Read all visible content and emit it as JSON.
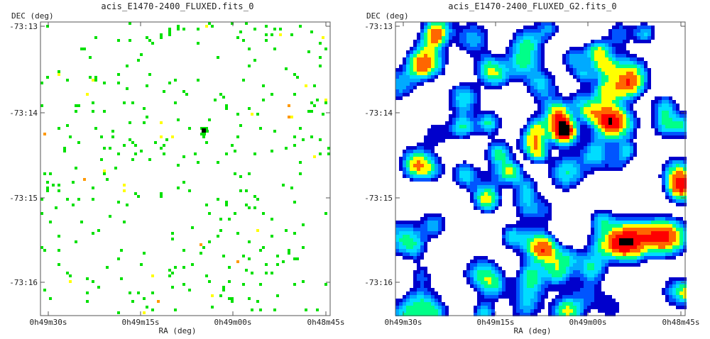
{
  "chart_data": [
    {
      "type": "heatmap",
      "title": "acis_E1470-2400_FLUXED.fits_0",
      "xlabel": "RA (deg)",
      "ylabel": "DEC (deg)",
      "x_ticks": [
        "0h49m30s",
        "0h49m15s",
        "0h49m00s",
        "0h48m45s"
      ],
      "y_ticks": [
        "-73:13",
        "-73:14",
        "-73:15",
        "-73:16"
      ],
      "colormap": [
        "#00e000",
        "#ffff00",
        "#ff9900",
        "#ff0000",
        "#000000"
      ],
      "background": "#ffffff",
      "peak_source": {
        "ra": "0h49m04s",
        "dec": "-73:14:12"
      }
    },
    {
      "type": "heatmap",
      "title": "acis_E1470-2400_FLUXED_G2.fits_0",
      "xlabel": "RA (deg)",
      "ylabel": "DEC (deg)",
      "x_ticks": [
        "0h49m30s",
        "0h49m15s",
        "0h49m00s",
        "0h48m45s"
      ],
      "y_ticks": [
        "-73:13",
        "-73:14",
        "-73:15",
        "-73:16"
      ],
      "colormap": [
        "#0000cc",
        "#0055ff",
        "#00aaff",
        "#00ddff",
        "#00ff88",
        "#ffff00",
        "#ff6600",
        "#ff0000",
        "#000000"
      ],
      "background": "#ffffff",
      "peak_source": {
        "ra": "0h49m04s",
        "dec": "-73:14:12"
      }
    }
  ]
}
